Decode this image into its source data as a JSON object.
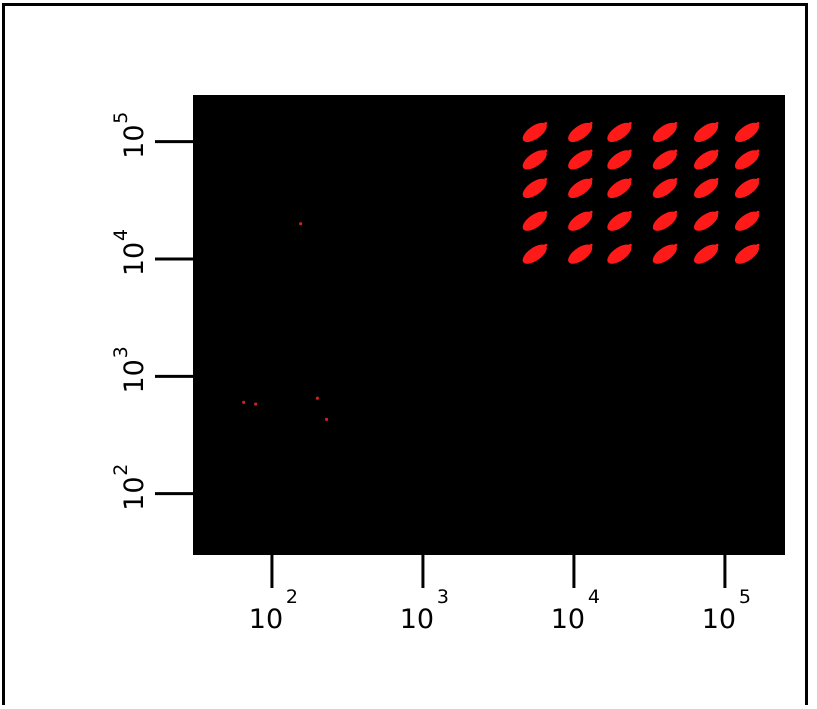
{
  "chart_data": {
    "type": "scatter",
    "title": "",
    "xlabel": "",
    "ylabel": "",
    "x_scale": "log",
    "y_scale": "log",
    "xlim": [
      30,
      250000
    ],
    "ylim": [
      30,
      250000
    ],
    "x_ticks": [
      {
        "base": "10",
        "exp": "2",
        "value": 100
      },
      {
        "base": "10",
        "exp": "3",
        "value": 1000
      },
      {
        "base": "10",
        "exp": "4",
        "value": 10000
      },
      {
        "base": "10",
        "exp": "5",
        "value": 100000
      }
    ],
    "y_ticks": [
      {
        "base": "10",
        "exp": "2",
        "value": 100
      },
      {
        "base": "10",
        "exp": "3",
        "value": 1000
      },
      {
        "base": "10",
        "exp": "4",
        "value": 10000
      },
      {
        "base": "10",
        "exp": "5",
        "value": 100000
      }
    ],
    "grid": false,
    "plot_background": "#000000",
    "point_color": "#ff1a1a",
    "series": [
      {
        "clusters": [
          {
            "x": 5500,
            "y": 120000
          },
          {
            "x": 11000,
            "y": 120000
          },
          {
            "x": 20000,
            "y": 120000
          },
          {
            "x": 40000,
            "y": 120000
          },
          {
            "x": 75000,
            "y": 120000
          },
          {
            "x": 140000,
            "y": 120000
          },
          {
            "x": 5500,
            "y": 70000
          },
          {
            "x": 11000,
            "y": 70000
          },
          {
            "x": 20000,
            "y": 70000
          },
          {
            "x": 40000,
            "y": 70000
          },
          {
            "x": 75000,
            "y": 70000
          },
          {
            "x": 140000,
            "y": 70000
          },
          {
            "x": 5500,
            "y": 40000
          },
          {
            "x": 11000,
            "y": 40000
          },
          {
            "x": 20000,
            "y": 40000
          },
          {
            "x": 40000,
            "y": 40000
          },
          {
            "x": 75000,
            "y": 40000
          },
          {
            "x": 140000,
            "y": 40000
          },
          {
            "x": 5500,
            "y": 21000
          },
          {
            "x": 11000,
            "y": 21000
          },
          {
            "x": 20000,
            "y": 21000
          },
          {
            "x": 40000,
            "y": 21000
          },
          {
            "x": 75000,
            "y": 21000
          },
          {
            "x": 140000,
            "y": 21000
          },
          {
            "x": 5500,
            "y": 11000
          },
          {
            "x": 11000,
            "y": 11000
          },
          {
            "x": 20000,
            "y": 11000
          },
          {
            "x": 40000,
            "y": 11000
          },
          {
            "x": 75000,
            "y": 11000
          },
          {
            "x": 140000,
            "y": 11000
          }
        ],
        "scattered_points": [
          {
            "x": 65,
            "y": 600
          },
          {
            "x": 78,
            "y": 580
          },
          {
            "x": 155,
            "y": 20000
          },
          {
            "x": 200,
            "y": 650
          },
          {
            "x": 230,
            "y": 430
          }
        ]
      }
    ]
  }
}
